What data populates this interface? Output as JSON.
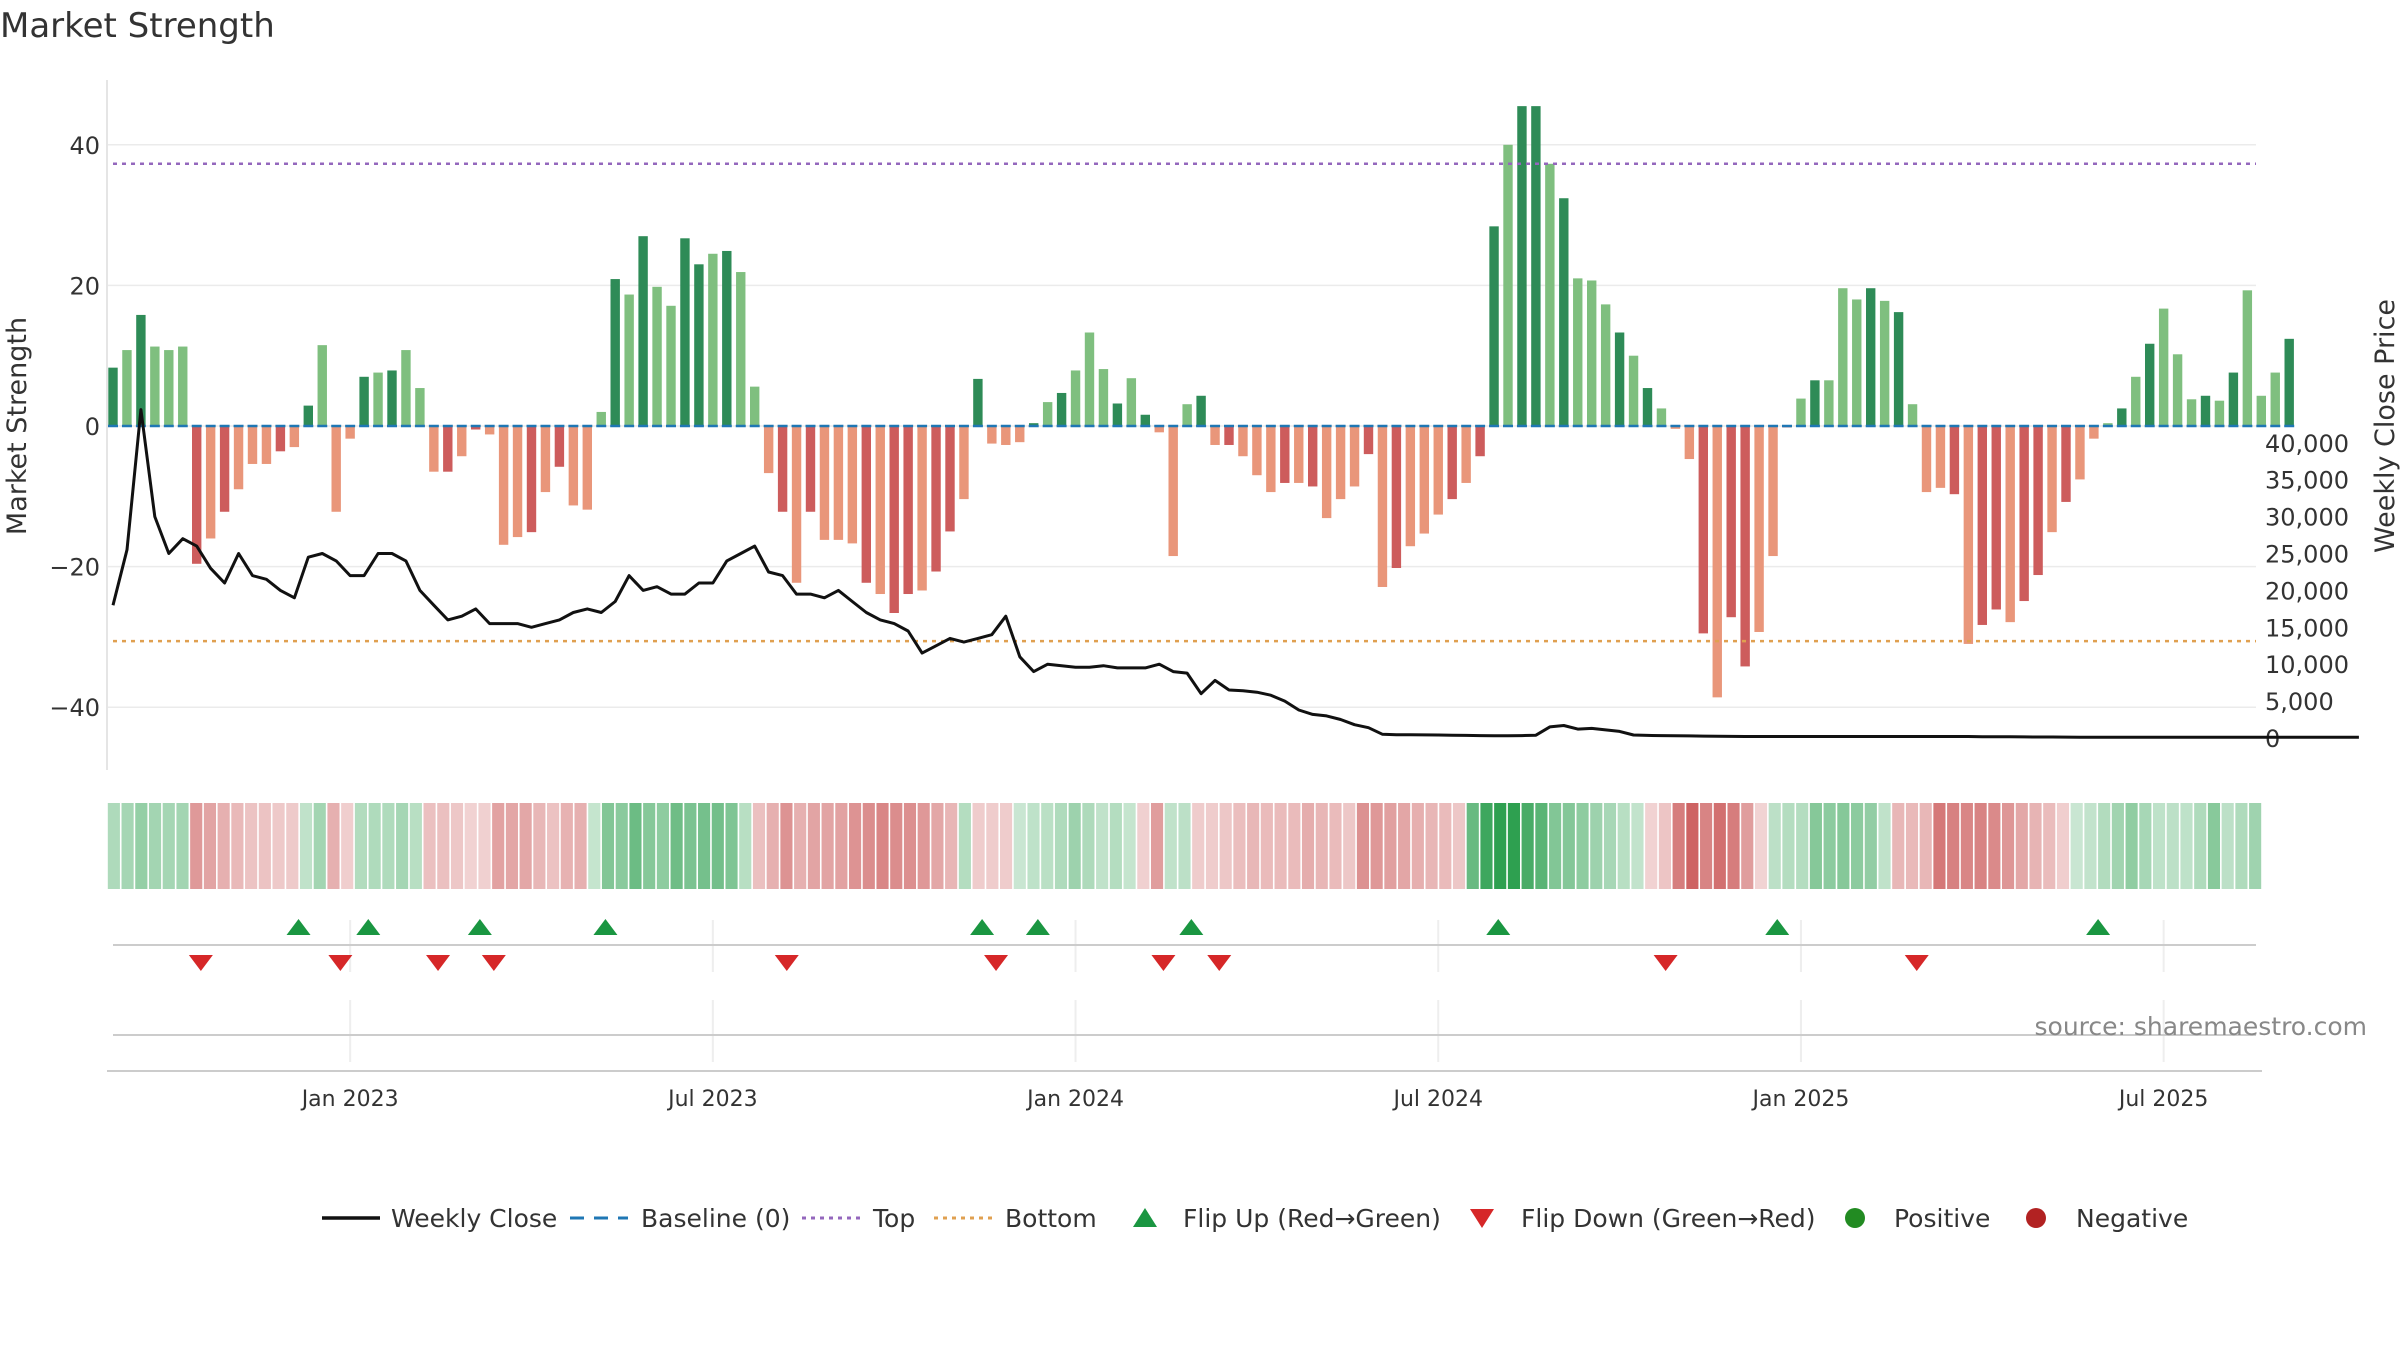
{
  "chart_data": {
    "type": "bar",
    "title": "Market Strength",
    "ylabel": "Market Strength",
    "y2label": "Weekly Close Price",
    "source": "source: sharemaestro.com",
    "ylim": [
      -44.6,
      49.4
    ],
    "y2lim": [
      0,
      44200
    ],
    "y_ticks": [
      40,
      20,
      0,
      -20,
      -40
    ],
    "y_tick_labels": [
      "40",
      "20",
      "0",
      "−20",
      "−40"
    ],
    "y2_ticks": [
      0,
      5000,
      10000,
      15000,
      20000,
      25000,
      30000,
      35000,
      40000
    ],
    "y2_tick_labels": [
      "0",
      "5,000",
      "10,000",
      "15,000",
      "20,000",
      "25,000",
      "30,000",
      "35,000",
      "40,000"
    ],
    "x_ticks": [
      {
        "label": "Jan 2023",
        "t": 17.0
      },
      {
        "label": "Jul 2023",
        "t": 43.0
      },
      {
        "label": "Jan 2024",
        "t": 69.0
      },
      {
        "label": "Jul 2024",
        "t": 95.0
      },
      {
        "label": "Jan 2025",
        "t": 121.0
      },
      {
        "label": "Jul 2025",
        "t": 147.0
      }
    ],
    "top_line": 37.3,
    "bottom_line": -30.6,
    "strength": [
      8.3,
      10.8,
      15.8,
      11.3,
      10.8,
      11.3,
      -19.6,
      -16.0,
      -12.2,
      -9.0,
      -5.4,
      -5.4,
      -3.6,
      -3.0,
      2.9,
      11.5,
      -12.2,
      -1.8,
      7.0,
      7.6,
      7.9,
      10.8,
      5.4,
      -6.5,
      -6.5,
      -4.3,
      -0.5,
      -1.2,
      -16.9,
      -15.8,
      -15.1,
      -9.4,
      -5.8,
      -11.3,
      -11.9,
      2.0,
      20.9,
      18.7,
      27.0,
      19.8,
      17.1,
      26.7,
      23.0,
      24.5,
      24.9,
      21.9,
      5.6,
      -6.7,
      -12.2,
      -22.3,
      -12.2,
      -16.2,
      -16.2,
      -16.7,
      -22.3,
      -23.9,
      -26.6,
      -23.9,
      -23.4,
      -20.7,
      -15.0,
      -10.4,
      6.7,
      -2.5,
      -2.7,
      -2.3,
      0.4,
      3.4,
      4.7,
      7.9,
      13.3,
      8.1,
      3.2,
      6.8,
      1.6,
      -0.9,
      -18.5,
      3.1,
      4.3,
      -2.7,
      -2.7,
      -4.3,
      -7.0,
      -9.4,
      -8.1,
      -8.1,
      -8.6,
      -13.1,
      -10.4,
      -8.6,
      -4.0,
      -22.9,
      -20.2,
      -17.1,
      -15.3,
      -12.6,
      -10.4,
      -8.1,
      -4.3,
      28.4,
      40.0,
      45.5,
      45.5,
      37.3,
      32.4,
      21.0,
      20.7,
      17.3,
      13.3,
      10.0,
      5.4,
      2.5,
      -0.4,
      -4.7,
      -29.5,
      -38.6,
      -27.2,
      -34.2,
      -29.3,
      -18.5,
      -0.2,
      3.9,
      6.5,
      6.5,
      19.6,
      18.0,
      19.6,
      17.8,
      16.2,
      3.1,
      -9.4,
      -8.8,
      -9.7,
      -31.0,
      -28.3,
      -26.1,
      -27.9,
      -24.9,
      -21.2,
      -15.1,
      -10.8,
      -7.6,
      -1.8,
      0.4,
      2.5,
      7.0,
      11.7,
      16.7,
      10.2,
      3.8,
      4.3,
      3.6,
      7.6,
      19.3,
      4.3,
      7.6,
      12.4
    ],
    "close": [
      18000,
      25500,
      44500,
      30000,
      25000,
      27000,
      26000,
      23000,
      21000,
      25000,
      22000,
      21500,
      20000,
      19000,
      24500,
      25000,
      24000,
      22000,
      22000,
      25000,
      25000,
      24000,
      20000,
      18000,
      16000,
      16500,
      17500,
      15500,
      15500,
      15500,
      15000,
      15500,
      16000,
      17000,
      17500,
      17000,
      18500,
      22000,
      20000,
      20500,
      19500,
      19500,
      21000,
      21000,
      24000,
      25000,
      26000,
      22500,
      22000,
      19500,
      19500,
      19000,
      20000,
      18500,
      17000,
      16000,
      15500,
      14500,
      11500,
      12500,
      13500,
      13000,
      13500,
      14000,
      16500,
      11000,
      9000,
      10000,
      9800,
      9600,
      9600,
      9800,
      9500,
      9500,
      9500,
      10000,
      9000,
      8800,
      6000,
      7800,
      6500,
      6400,
      6200,
      5800,
      5000,
      3800,
      3200,
      3000,
      2500,
      1800,
      1400,
      500,
      450,
      450,
      420,
      400,
      380,
      350,
      320,
      300,
      300,
      320,
      380,
      1500,
      1700,
      1200,
      1300,
      1100,
      900,
      400,
      350,
      330,
      300,
      280,
      260,
      240,
      220,
      200,
      200,
      200,
      200,
      200,
      200,
      200,
      200,
      200,
      200,
      200,
      200,
      200,
      200,
      200,
      200,
      200,
      180,
      170,
      160,
      150,
      140,
      130,
      120,
      100,
      100,
      100,
      100,
      100,
      100,
      100,
      100,
      100,
      100,
      100,
      100,
      100,
      100,
      100,
      100,
      100,
      100,
      100,
      100,
      100
    ],
    "flip_up_t": [
      13.3,
      18.3,
      26.3,
      35.3,
      62.3,
      66.3,
      77.3,
      99.3,
      119.3,
      142.3
    ],
    "flip_down_t": [
      6.3,
      16.3,
      23.3,
      27.3,
      48.3,
      63.3,
      75.3,
      79.3,
      111.3,
      129.3
    ]
  },
  "legend": {
    "weekly_close": "Weekly Close",
    "baseline": "Baseline (0)",
    "top": "Top",
    "bottom": "Bottom",
    "flip_up": "Flip Up (Red→Green)",
    "flip_down": "Flip Down (Green→Red)",
    "positive": "Positive",
    "negative": "Negative"
  },
  "colors": {
    "pos_dark": "#2e8b57",
    "pos_light": "#7fbf7f",
    "neg_dark": "#cd5c5c",
    "neg_light": "#e9967a",
    "close_line": "#111111",
    "baseline": "#1f77b4",
    "top_line": "#9467bd",
    "bottom_line": "#e0a050",
    "flip_up": "#1a9641",
    "flip_down": "#d62728",
    "positive_dot": "#228b22",
    "negative_dot": "#b22222"
  }
}
